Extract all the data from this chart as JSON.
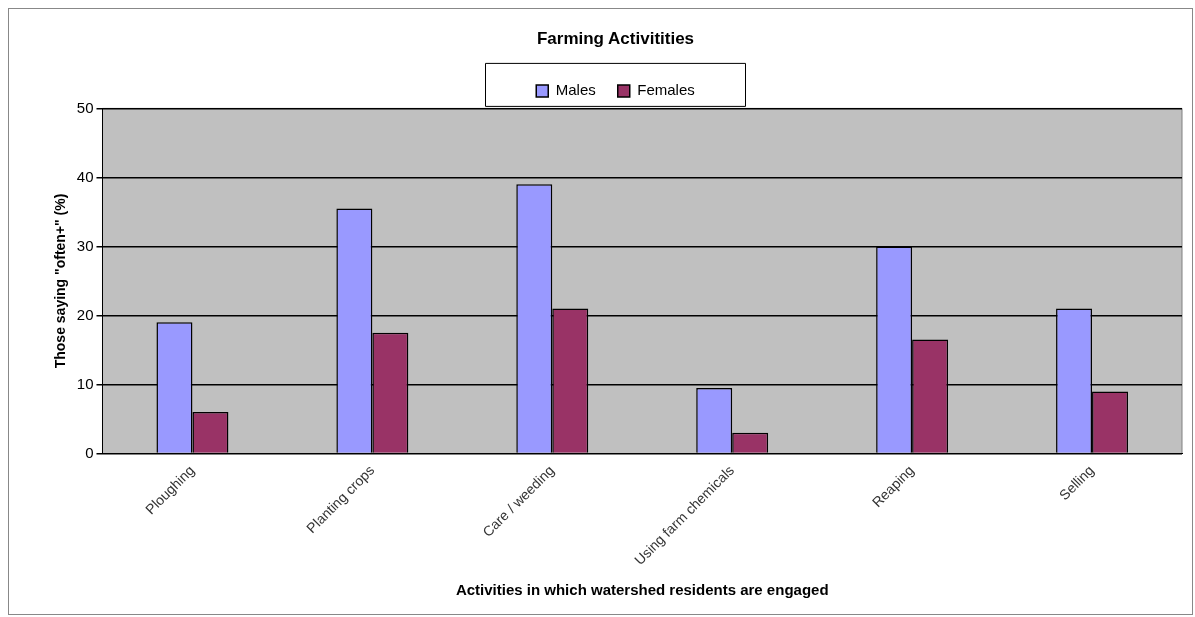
{
  "chart_data": {
    "type": "bar",
    "title": "Farming Activitities",
    "xlabel": "Activities in which watershed residents are engaged",
    "ylabel": "Those saying \"often+\" (%)",
    "categories": [
      "Ploughing",
      "Planting crops",
      "Care / weeding",
      "Using farm chemicals",
      "Reaping",
      "Selling"
    ],
    "series": [
      {
        "name": "Males",
        "color": "#9999ff",
        "values": [
          19,
          35.5,
          39,
          9.5,
          30,
          21
        ]
      },
      {
        "name": "Females",
        "color": "#993366",
        "values": [
          6,
          17.5,
          21,
          3,
          16.5,
          9
        ]
      }
    ],
    "ylim": [
      0,
      50
    ],
    "yticks": [
      0,
      10,
      20,
      30,
      40,
      50
    ],
    "grid": "y",
    "legend": "top"
  }
}
